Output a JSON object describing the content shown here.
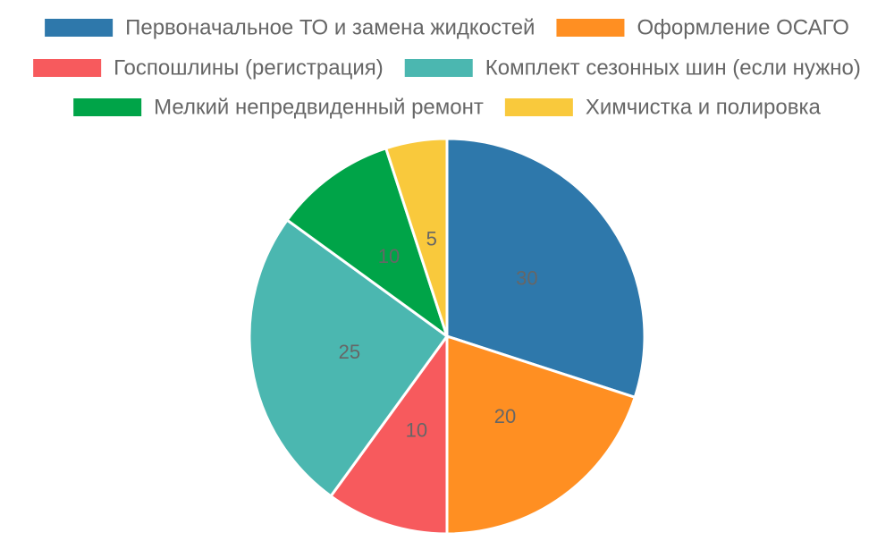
{
  "chart_data": {
    "type": "pie",
    "title": "",
    "legend_position": "top",
    "slices": [
      {
        "label": "Первоначальное ТО и замена жидкостей",
        "value": 30,
        "color": "#2e78ab"
      },
      {
        "label": "Оформление ОСАГО",
        "value": 20,
        "color": "#ff8f22"
      },
      {
        "label": "Госпошлины (регистрация)",
        "value": 10,
        "color": "#f75a5d"
      },
      {
        "label": "Комплект сезонных шин (если нужно)",
        "value": 25,
        "color": "#4bb7b0"
      },
      {
        "label": "Мелкий непредвиденный ремонт",
        "value": 10,
        "color": "#00a448"
      },
      {
        "label": "Химчистка и полировка",
        "value": 5,
        "color": "#f9c93c"
      }
    ]
  }
}
